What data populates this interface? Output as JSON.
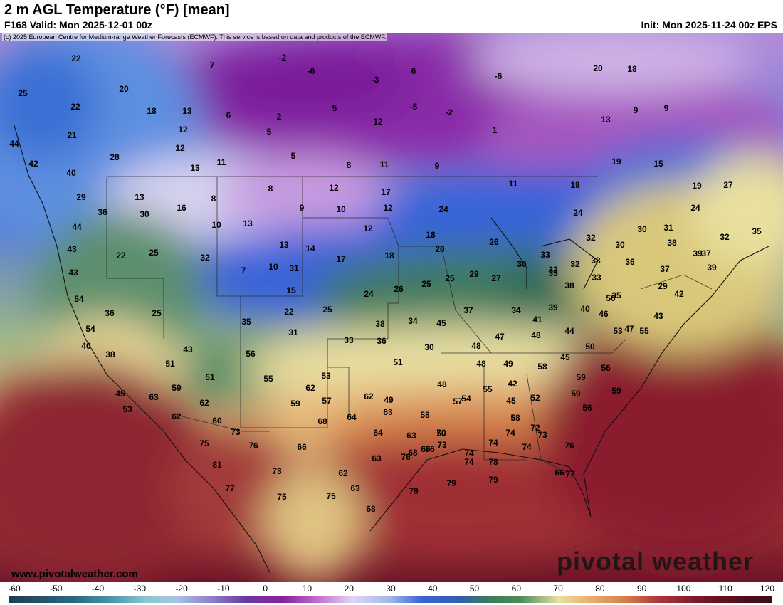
{
  "header": {
    "title": "2 m AGL Temperature (°F) [mean]",
    "valid": "F168 Valid: Mon 2025-12-01 00z",
    "init": "Init: Mon 2025-11-24 00z EPS",
    "copyright": "(c) 2025 European Centre for Medium-range Weather Forecasts (ECMWF). This service is based on data and products of the ECMWF."
  },
  "watermarks": {
    "website": "www.pivotalweather.com",
    "brand": "pivotal weather"
  },
  "colorbar": {
    "labels": [
      "-60",
      "-50",
      "-40",
      "-30",
      "-20",
      "-10",
      "0",
      "10",
      "20",
      "30",
      "40",
      "50",
      "60",
      "70",
      "80",
      "90",
      "100",
      "110",
      "120"
    ]
  },
  "colors": {
    "cold": "#8b1f9f",
    "cool": "#3b63d8",
    "mild": "#e8e0a0",
    "warm": "#b0353a",
    "hot": "#6e1526"
  },
  "map_values": [
    "22",
    "-2",
    "7",
    "-6",
    "-3",
    "6",
    "-6",
    "20",
    "18",
    "25",
    "20",
    "22",
    "18",
    "13",
    "6",
    "2",
    "5",
    "-5",
    "-2",
    "1",
    "9",
    "9",
    "21",
    "12",
    "5",
    "12",
    "13",
    "44",
    "12",
    "28",
    "11",
    "5",
    "8",
    "11",
    "9",
    "15",
    "19",
    "40",
    "13",
    "42",
    "29",
    "13",
    "8",
    "8",
    "12",
    "17",
    "11",
    "19",
    "19",
    "27",
    "16",
    "9",
    "10",
    "12",
    "24",
    "24",
    "36",
    "30",
    "10",
    "13",
    "12",
    "18",
    "24",
    "30",
    "31",
    "44",
    "13",
    "14",
    "18",
    "20",
    "26",
    "32",
    "38",
    "32",
    "35",
    "25",
    "32",
    "43",
    "17",
    "33",
    "30",
    "32",
    "37",
    "22",
    "29",
    "30",
    "33",
    "38",
    "37",
    "39",
    "43",
    "7",
    "10",
    "27",
    "15",
    "24",
    "26",
    "25",
    "25",
    "38",
    "31",
    "33",
    "36",
    "42",
    "32",
    "29",
    "39",
    "54",
    "36",
    "25",
    "22",
    "25",
    "38",
    "35",
    "37",
    "34",
    "41",
    "39",
    "35",
    "31",
    "33",
    "36",
    "34",
    "45",
    "44",
    "48",
    "50",
    "43",
    "47",
    "48",
    "46",
    "40",
    "47",
    "55",
    "53",
    "54",
    "40",
    "38",
    "43",
    "56",
    "30",
    "45",
    "50",
    "51",
    "51",
    "55",
    "53",
    "51",
    "56",
    "48",
    "48",
    "49",
    "58",
    "59",
    "42",
    "55",
    "59",
    "59",
    "62",
    "49",
    "45",
    "53",
    "63",
    "59",
    "62",
    "57",
    "59",
    "45",
    "52",
    "57",
    "58",
    "56",
    "60",
    "62",
    "54",
    "58",
    "50",
    "66",
    "64",
    "63",
    "63",
    "64",
    "62",
    "68",
    "73",
    "66",
    "76",
    "63",
    "68",
    "70",
    "73",
    "74",
    "74",
    "74",
    "73",
    "74",
    "72",
    "76",
    "75",
    "76",
    "76",
    "74",
    "78",
    "81",
    "73",
    "77",
    "75",
    "75",
    "63",
    "62",
    "79",
    "79",
    "79",
    "77",
    "66",
    "68"
  ]
}
